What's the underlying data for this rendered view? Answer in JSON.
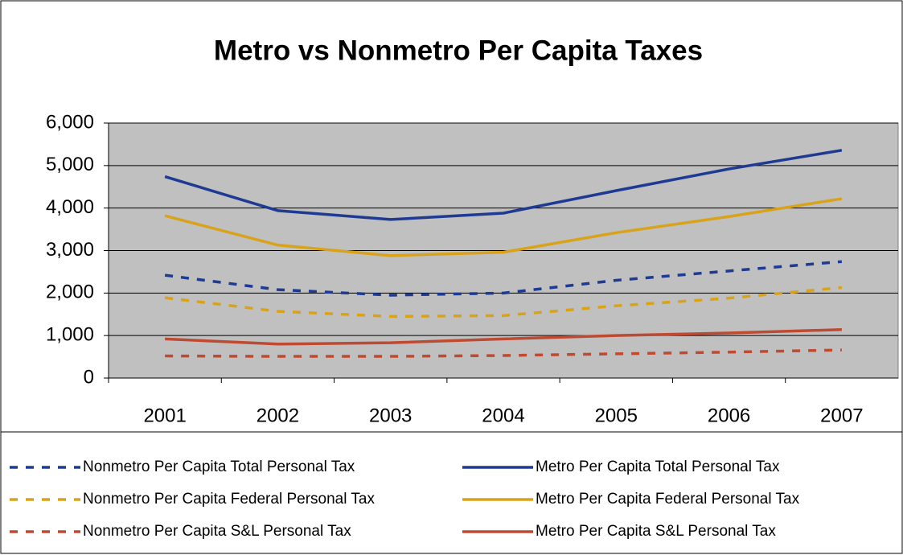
{
  "chart_data": {
    "type": "line",
    "title": "Metro vs Nonmetro Per Capita Taxes",
    "categories": [
      "2001",
      "2002",
      "2003",
      "2004",
      "2005",
      "2006",
      "2007"
    ],
    "series": [
      {
        "name": "Nonmetro Per Capita Total Personal Tax",
        "color": "#1f3a93",
        "dashed": true,
        "values": [
          2420,
          2080,
          1950,
          2000,
          2300,
          2520,
          2740
        ]
      },
      {
        "name": "Metro Per Capita Total Personal Tax",
        "color": "#1f3a93",
        "dashed": false,
        "values": [
          4740,
          3940,
          3730,
          3880,
          4410,
          4920,
          5360
        ]
      },
      {
        "name": "Nonmetro Per Capita Federal Personal Tax",
        "color": "#d9a21b",
        "dashed": true,
        "values": [
          1890,
          1570,
          1450,
          1470,
          1700,
          1880,
          2130
        ]
      },
      {
        "name": "Metro Per Capita Federal Personal Tax",
        "color": "#d9a21b",
        "dashed": false,
        "values": [
          3820,
          3130,
          2880,
          2960,
          3420,
          3800,
          4220
        ]
      },
      {
        "name": "Nonmetro Per Capita S&L Personal Tax",
        "color": "#bf4a32",
        "dashed": true,
        "values": [
          520,
          510,
          510,
          530,
          570,
          610,
          660
        ]
      },
      {
        "name": "Metro Per Capita S&L Personal Tax",
        "color": "#bf4a32",
        "dashed": false,
        "values": [
          920,
          800,
          830,
          920,
          1000,
          1060,
          1140
        ]
      }
    ],
    "ylim": [
      0,
      6000
    ],
    "yticks": [
      0,
      {
        "value": 1000,
        "label": "1,000"
      },
      {
        "value": 2000,
        "label": "2,000"
      },
      {
        "value": 3000,
        "label": "3,000"
      },
      {
        "value": 4000,
        "label": "4,000"
      },
      {
        "value": 5000,
        "label": "5,000"
      },
      {
        "value": 6000,
        "label": "6,000"
      }
    ],
    "grid": true,
    "plot_background": "#c0c0c0",
    "legend": "bottom"
  }
}
